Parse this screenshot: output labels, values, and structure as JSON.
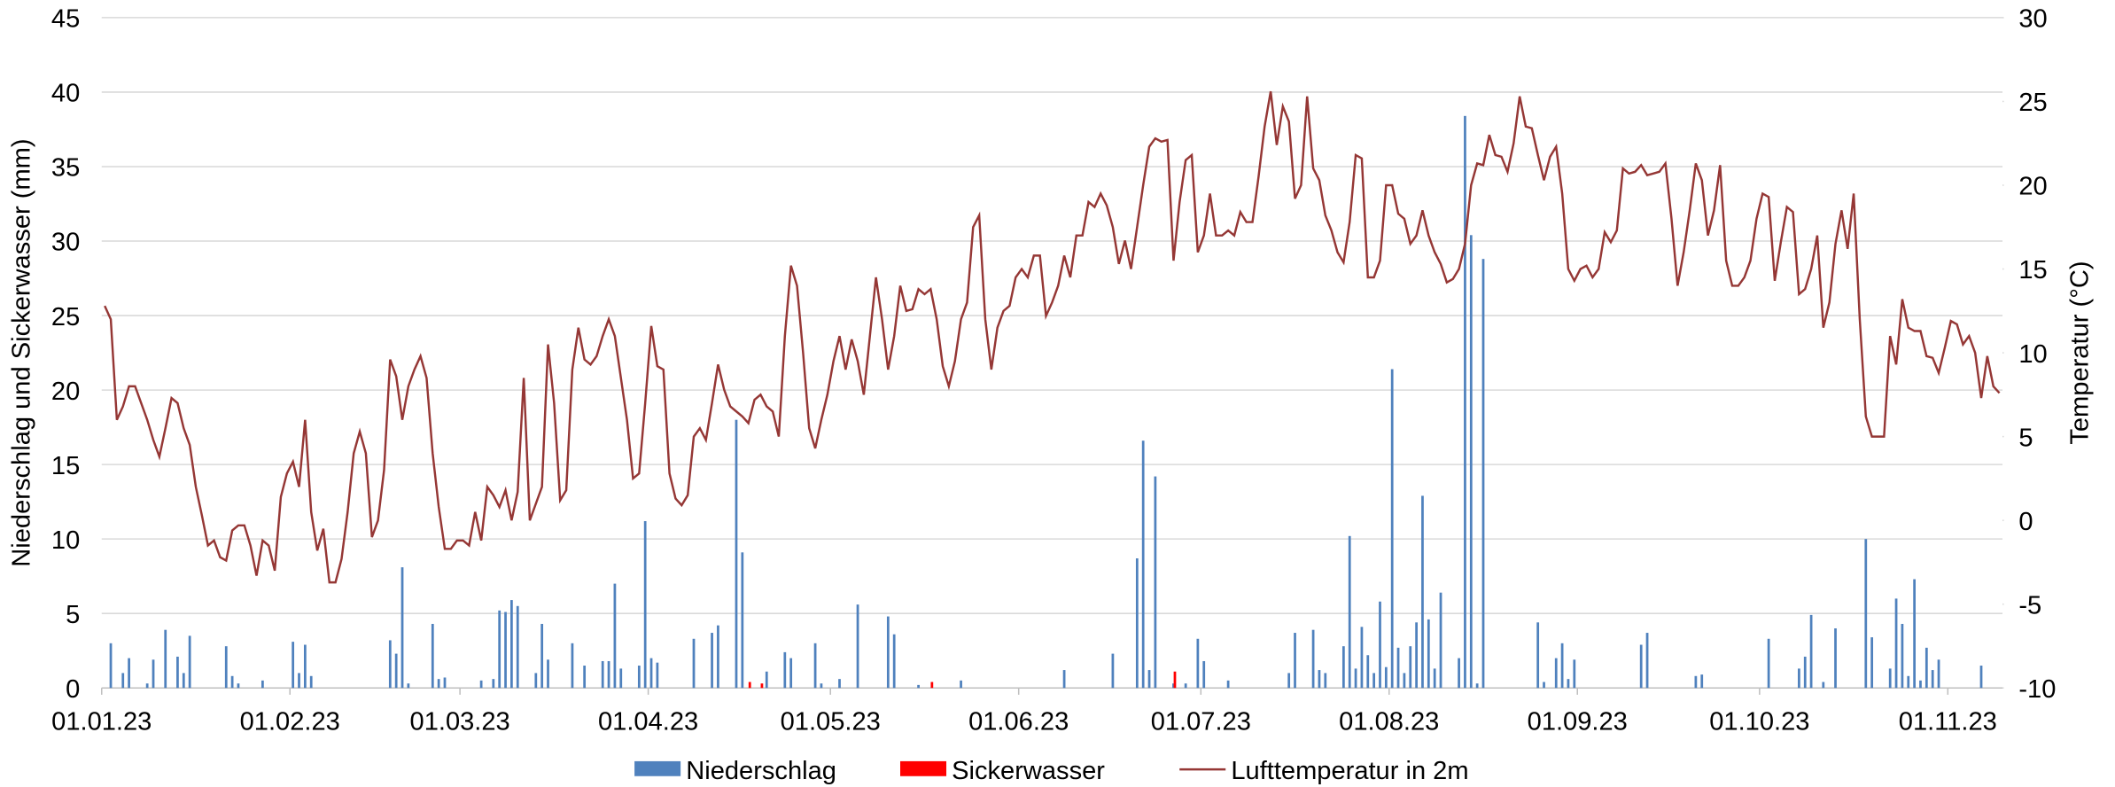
{
  "chart_data": {
    "type": "bar_line",
    "y_label": "Niederschlag und Sickerwasser (mm)",
    "y2_label": "Temperatur (°C)",
    "ylim": [
      0,
      45
    ],
    "yticks": [
      0,
      5,
      10,
      15,
      20,
      25,
      30,
      35,
      40,
      45
    ],
    "y2lim": [
      -10,
      30
    ],
    "y2ticks": [
      -10,
      -5,
      0,
      5,
      10,
      15,
      20,
      25,
      30
    ],
    "grid": true,
    "legend": "bottom",
    "categories": [
      "01.01.23",
      null,
      null,
      null,
      null,
      null,
      null,
      null,
      null,
      null,
      null,
      null,
      null,
      null,
      null,
      null,
      null,
      null,
      null,
      null,
      null,
      null,
      null,
      null,
      null,
      null,
      null,
      null,
      null,
      null,
      null,
      "01.02.23",
      null,
      null,
      null,
      null,
      null,
      null,
      null,
      null,
      null,
      null,
      null,
      null,
      null,
      null,
      null,
      null,
      null,
      null,
      null,
      null,
      null,
      null,
      null,
      null,
      null,
      null,
      null,
      "01.03.23",
      null,
      null,
      null,
      null,
      null,
      null,
      null,
      null,
      null,
      null,
      null,
      null,
      null,
      null,
      null,
      null,
      null,
      null,
      null,
      null,
      null,
      null,
      null,
      null,
      null,
      null,
      null,
      null,
      null,
      null,
      "01.04.23",
      null,
      null,
      null,
      null,
      null,
      null,
      null,
      null,
      null,
      null,
      null,
      null,
      null,
      null,
      null,
      null,
      null,
      null,
      null,
      null,
      null,
      null,
      null,
      null,
      null,
      null,
      null,
      null,
      null,
      "01.05.23",
      null,
      null,
      null,
      null,
      null,
      null,
      null,
      null,
      null,
      null,
      null,
      null,
      null,
      null,
      null,
      null,
      null,
      null,
      null,
      null,
      null,
      null,
      null,
      null,
      null,
      null,
      null,
      null,
      null,
      null,
      "01.06.23",
      null,
      null,
      null,
      null,
      null,
      null,
      null,
      null,
      null,
      null,
      null,
      null,
      null,
      null,
      null,
      null,
      null,
      null,
      null,
      null,
      null,
      null,
      null,
      null,
      null,
      null,
      null,
      null,
      null,
      "01.07.23",
      null,
      null,
      null,
      null,
      null,
      null,
      null,
      null,
      null,
      null,
      null,
      null,
      null,
      null,
      null,
      null,
      null,
      null,
      null,
      null,
      null,
      null,
      null,
      null,
      null,
      null,
      null,
      null,
      null,
      null,
      "01.08.23",
      null,
      null,
      null,
      null,
      null,
      null,
      null,
      null,
      null,
      null,
      null,
      null,
      null,
      null,
      null,
      null,
      null,
      null,
      null,
      null,
      null,
      null,
      null,
      null,
      null,
      null,
      null,
      null,
      null,
      null,
      "01.09.23",
      null,
      null,
      null,
      null,
      null,
      null,
      null,
      null,
      null,
      null,
      null,
      null,
      null,
      null,
      null,
      null,
      null,
      null,
      null,
      null,
      null,
      null,
      null,
      null,
      null,
      null,
      null,
      null,
      null,
      "01.10.23",
      null,
      null,
      null,
      null,
      null,
      null,
      null,
      null,
      null,
      null,
      null,
      null,
      null,
      null,
      null,
      null,
      null,
      null,
      null,
      null,
      null,
      null,
      null,
      null,
      null,
      null,
      null,
      null,
      null,
      null,
      "01.11.23",
      null,
      null,
      null,
      null,
      null,
      null,
      null,
      null
    ],
    "series": [
      {
        "name": "Niederschlag",
        "color": "#4f81bd",
        "type": "bar",
        "values": [
          0,
          3,
          0,
          1,
          2,
          0,
          0,
          0.3,
          1.9,
          0,
          3.9,
          0,
          2.1,
          1,
          3.5,
          0,
          0,
          0,
          0,
          0,
          2.8,
          0.8,
          0.3,
          0,
          0,
          0,
          0.5,
          0,
          0,
          0,
          0,
          3.1,
          1,
          2.9,
          0.8,
          0,
          0,
          0,
          0,
          0,
          0,
          0,
          0,
          0,
          0,
          0,
          0,
          3.2,
          2.3,
          8.1,
          0.3,
          0,
          0,
          0,
          4.3,
          0.6,
          0.7,
          0,
          0,
          0,
          0,
          0,
          0.5,
          0,
          0.6,
          5.2,
          5.1,
          5.9,
          5.5,
          0,
          0,
          1,
          4.3,
          1.9,
          0,
          0,
          0,
          3,
          0,
          1.5,
          0,
          0,
          1.8,
          1.8,
          7,
          1.3,
          0,
          0,
          1.5,
          11.2,
          2,
          1.7,
          0,
          0,
          0,
          0,
          0,
          3.3,
          0,
          0,
          3.7,
          4.2,
          0,
          0,
          18,
          9.1,
          0,
          0,
          0,
          1.1,
          0,
          0,
          2.4,
          2,
          0,
          0,
          0,
          3,
          0.3,
          0,
          0,
          0.6,
          0,
          0,
          5.6,
          0,
          0,
          0,
          0,
          4.8,
          3.6,
          0,
          0,
          0,
          0.2,
          0,
          0,
          0,
          0,
          0,
          0,
          0.5,
          0,
          0,
          0,
          0,
          0,
          0,
          0,
          0,
          0,
          0,
          0,
          0,
          0,
          0,
          0,
          0,
          1.2,
          0,
          0,
          0,
          0,
          0,
          0,
          0,
          2.3,
          0,
          0,
          0,
          8.7,
          16.6,
          1.2,
          14.2,
          0,
          0,
          0.3,
          0,
          0.3,
          0,
          3.3,
          1.8,
          0,
          0,
          0,
          0.5,
          0,
          0,
          0,
          0,
          0,
          0,
          0,
          0,
          0,
          1,
          3.7,
          0,
          0,
          3.9,
          1.2,
          1,
          0,
          0,
          2.8,
          10.2,
          1.3,
          4.1,
          2.2,
          1,
          5.8,
          1.4,
          21.4,
          2.7,
          1,
          2.8,
          4.4,
          12.9,
          4.6,
          1.3,
          6.4,
          0,
          0,
          2,
          38.4,
          30.4,
          0.3,
          28.8,
          0,
          0,
          0,
          0,
          0,
          0,
          0,
          0,
          4.4,
          0.4,
          0,
          2,
          3,
          0.6,
          1.9,
          0,
          0,
          0,
          0,
          0,
          0,
          0,
          0,
          0,
          0,
          2.9,
          3.7,
          0,
          0,
          0,
          0,
          0,
          0,
          0,
          0.8,
          0.9,
          0,
          0,
          0,
          0,
          0,
          0,
          0,
          0,
          0,
          0,
          3.3,
          0,
          0,
          0,
          0,
          1.3,
          2.1,
          4.9,
          0,
          0.4,
          0,
          4,
          0,
          0,
          0,
          0,
          10,
          3.4,
          0,
          0,
          1.3,
          6,
          4.3,
          0.8,
          7.3,
          0.5,
          2.7,
          1.2,
          1.9,
          0,
          0,
          0,
          0,
          0,
          0,
          1.5,
          0,
          0,
          0
        ]
      },
      {
        "name": "Sickerwasser",
        "color": "#ff0000",
        "type": "bar",
        "values": [
          0,
          0,
          0,
          0,
          0,
          0,
          0,
          0,
          0,
          0,
          0,
          0,
          0,
          0,
          0,
          0,
          0,
          0,
          0,
          0,
          0,
          0,
          0,
          0,
          0,
          0,
          0,
          0,
          0,
          0,
          0,
          0,
          0,
          0,
          0,
          0,
          0,
          0,
          0,
          0,
          0,
          0,
          0,
          0,
          0,
          0,
          0,
          0,
          0,
          0,
          0,
          0,
          0,
          0,
          0,
          0,
          0,
          0,
          0,
          0,
          0,
          0,
          0,
          0,
          0,
          0,
          0,
          0,
          0,
          0,
          0,
          0,
          0,
          0,
          0,
          0,
          0,
          0,
          0,
          0,
          0,
          0,
          0,
          0,
          0,
          0,
          0,
          0,
          0,
          0,
          0,
          0,
          0,
          0,
          0,
          0,
          0,
          0,
          0,
          0,
          0,
          0,
          0,
          0,
          0,
          0,
          0.4,
          0,
          0.3,
          0,
          0,
          0,
          0,
          0,
          0,
          0,
          0,
          0,
          0,
          0,
          0,
          0,
          0,
          0,
          0,
          0,
          0,
          0,
          0,
          0,
          0,
          0,
          0,
          0,
          0,
          0,
          0.4,
          0,
          0,
          0,
          0,
          0,
          0,
          0,
          0,
          0,
          0,
          0,
          0,
          0,
          0,
          0,
          0,
          0,
          0,
          0,
          0,
          0,
          0,
          0,
          0,
          0,
          0,
          0,
          0,
          0,
          0,
          0,
          0,
          0,
          0,
          0,
          0,
          0,
          0,
          0,
          1.1,
          0,
          0,
          0,
          0,
          0,
          0,
          0,
          0,
          0,
          0,
          0,
          0,
          0,
          0,
          0,
          0,
          0,
          0,
          0,
          0,
          0,
          0,
          0,
          0,
          0,
          0,
          0,
          0,
          0,
          0,
          0,
          0,
          0,
          0,
          0,
          0,
          0,
          0,
          0,
          0,
          0,
          0,
          0,
          0,
          0,
          0,
          0,
          0,
          0,
          0,
          0,
          0,
          0,
          0,
          0,
          0,
          0,
          0,
          0,
          0,
          0,
          0,
          0,
          0,
          0,
          0,
          0,
          0,
          0,
          0,
          0,
          0,
          0,
          0,
          0,
          0,
          0,
          0,
          0,
          0,
          0,
          0,
          0,
          0,
          0,
          0,
          0,
          0,
          0,
          0,
          0,
          0,
          0,
          0,
          0,
          0,
          0,
          0,
          0,
          0,
          0,
          0,
          0,
          0,
          0,
          0,
          0,
          0,
          0,
          0,
          0,
          0,
          0,
          0,
          0,
          0,
          0,
          0,
          0,
          0,
          0,
          0,
          0,
          0,
          0,
          0,
          0,
          0,
          0,
          0,
          0,
          0,
          0,
          0,
          0,
          0
        ]
      },
      {
        "name": "Lufttemperatur in 2m",
        "color": "#953735",
        "type": "line",
        "axis": "y2",
        "values": [
          12.8,
          12,
          6,
          6.8,
          8,
          8,
          7,
          6,
          4.8,
          3.8,
          5.5,
          7.3,
          7,
          5.5,
          4.5,
          2,
          0.3,
          -1.5,
          -1.2,
          -2.2,
          -2.4,
          -0.6,
          -0.3,
          -0.3,
          -1.5,
          -3.3,
          -1.2,
          -1.5,
          -3,
          1.4,
          2.8,
          3.5,
          2,
          6,
          0.5,
          -1.8,
          -0.5,
          -3.7,
          -3.7,
          -2.3,
          0.5,
          4,
          5.3,
          4,
          -1,
          0,
          3,
          9.6,
          8.6,
          6,
          8,
          9,
          9.8,
          8.5,
          4,
          0.8,
          -1.7,
          -1.7,
          -1.2,
          -1.2,
          -1.5,
          0.5,
          -1.2,
          2,
          1.5,
          0.8,
          1.8,
          0,
          1.7,
          8.5,
          0,
          1,
          2,
          10.5,
          7,
          1.2,
          1.8,
          9,
          11.5,
          9.6,
          9.3,
          9.8,
          11,
          12,
          11,
          8.5,
          6,
          2.5,
          2.8,
          7,
          11.6,
          9.2,
          9,
          2.8,
          1.3,
          0.9,
          1.5,
          5,
          5.5,
          4.8,
          7,
          9.3,
          7.8,
          6.8,
          6.5,
          6.2,
          5.8,
          7.2,
          7.5,
          6.8,
          6.5,
          5,
          11,
          15.2,
          14,
          10,
          5.5,
          4.3,
          6,
          7.5,
          9.5,
          11,
          9,
          10.8,
          9.5,
          7.5,
          11,
          14.5,
          12,
          9,
          11,
          14,
          12.5,
          12.6,
          13.8,
          13.5,
          13.8,
          12,
          9.2,
          8,
          9.5,
          12,
          13,
          17.5,
          18.2,
          12,
          9,
          11.5,
          12.5,
          12.8,
          14.5,
          15,
          14.5,
          15.8,
          15.8,
          12.2,
          13,
          14,
          15.8,
          14.5,
          17,
          17,
          19,
          18.7,
          19.5,
          18.8,
          17.5,
          15.3,
          16.7,
          15,
          17.5,
          20,
          22.3,
          22.8,
          22.6,
          22.7,
          15.5,
          19,
          21.5,
          21.8,
          16,
          17,
          19.5,
          17,
          17,
          17.3,
          17,
          18.4,
          17.8,
          17.8,
          20.5,
          23.5,
          25.6,
          22.4,
          24.7,
          23.8,
          19.2,
          20,
          25.3,
          21,
          20.3,
          18.2,
          17.3,
          16,
          15.4,
          17.8,
          21.8,
          21.6,
          14.5,
          14.5,
          15.5,
          20,
          20,
          18.3,
          18,
          16.5,
          17,
          18.5,
          17,
          16,
          15.3,
          14.2,
          14.4,
          15,
          16.5,
          20,
          21.3,
          21.2,
          23,
          21.8,
          21.7,
          20.8,
          22.5,
          25.3,
          23.5,
          23.4,
          21.8,
          20.3,
          21.7,
          22.3,
          19.5,
          15,
          14.3,
          15,
          15.2,
          14.5,
          15,
          17.2,
          16.6,
          17.3,
          21,
          20.7,
          20.8,
          21.2,
          20.6,
          20.7,
          20.8,
          21.3,
          18,
          14,
          16,
          18.5,
          21.3,
          20.3,
          17,
          18.5,
          21.2,
          15.5,
          14,
          14,
          14.5,
          15.5,
          18,
          19.5,
          19.3,
          14.3,
          16.6,
          18.7,
          18.4,
          13.5,
          13.8,
          15,
          17,
          11.5,
          13,
          16.5,
          18.5,
          16.2,
          19.5,
          12,
          6.2,
          5,
          5,
          5,
          11,
          9.3,
          13.2,
          11.5,
          11.3,
          11.3,
          9.8,
          9.7,
          8.8,
          10.3,
          11.9,
          11.7,
          10.5,
          11,
          10,
          7.3,
          9.8,
          8,
          7.6
        ]
      }
    ]
  }
}
